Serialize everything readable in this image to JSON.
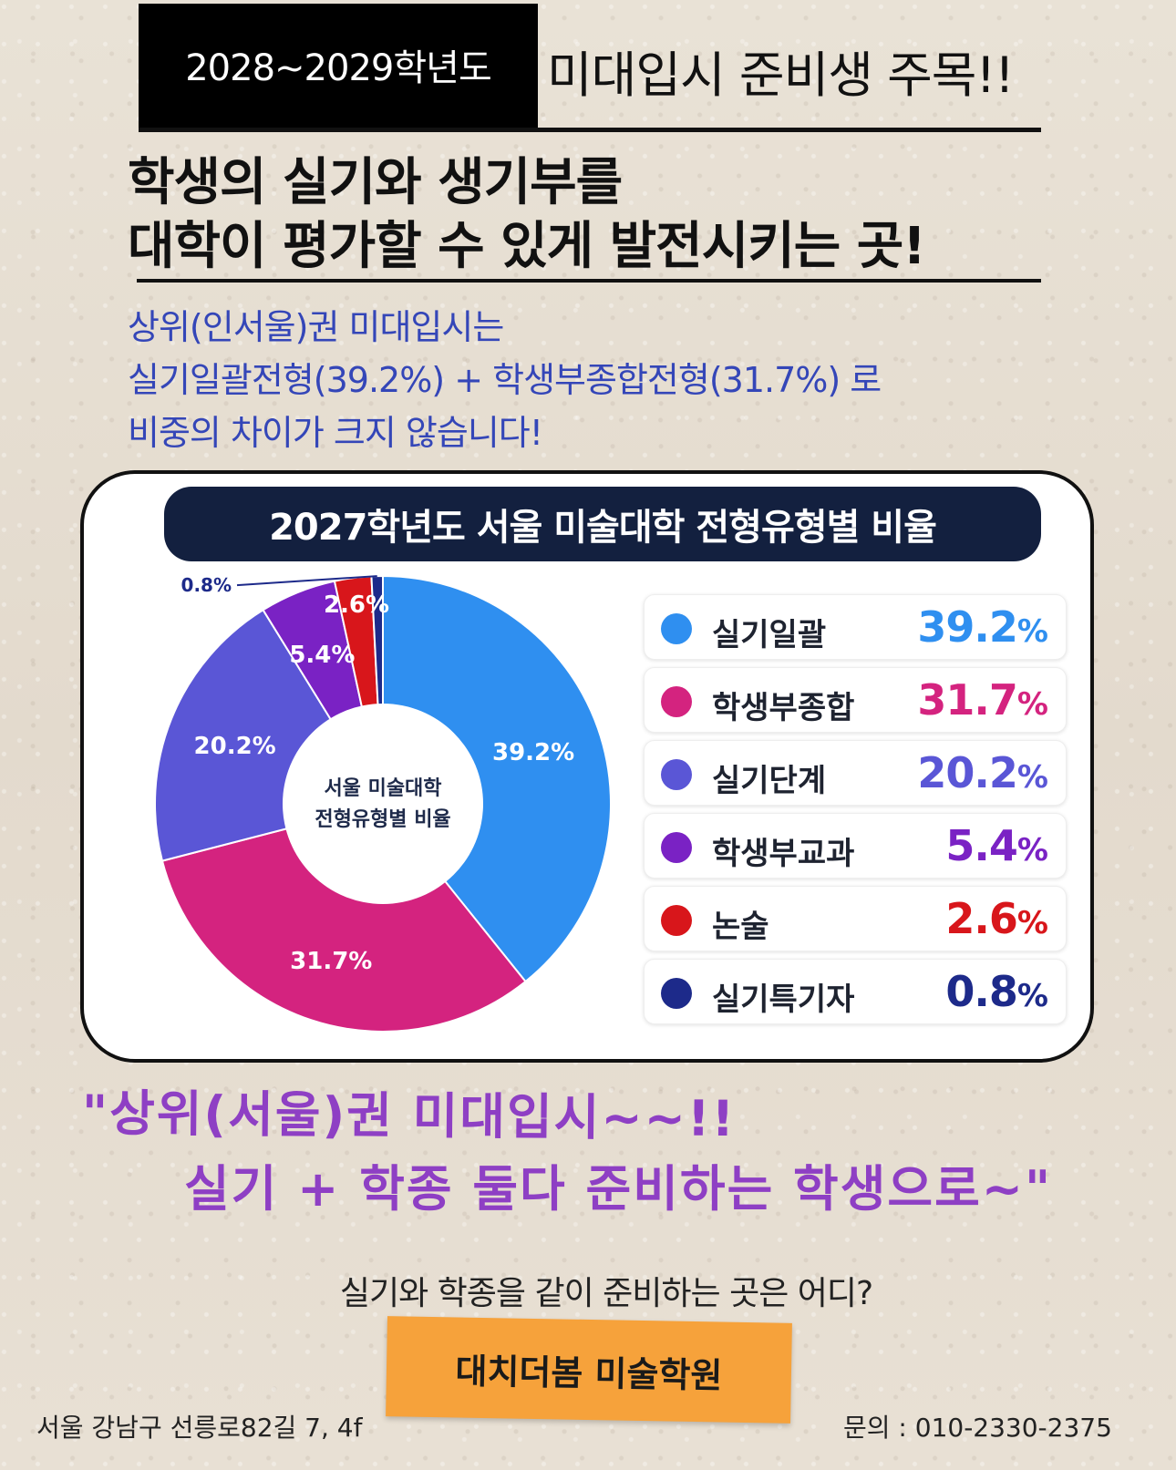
{
  "header": {
    "year_badge": "2028~2029학년도",
    "title": "미대입시 준비생 주목!!"
  },
  "headline": {
    "line1": "학생의 실기와 생기부를",
    "line2": "대학이 평가할 수  있게 발전시키는 곳!"
  },
  "subtext": {
    "line1": "상위(인서울)권  미대입시는",
    "line2": "실기일괄전형(39.2%) + 학생부종합전형(31.7%) 로",
    "line3": "비중의  차이가 크지  않습니다!"
  },
  "chart_data": {
    "type": "pie",
    "title": "2027학년도 서울 미술대학 전형유형별 비율",
    "center_label_line1": "서울 미술대학",
    "center_label_line2": "전형유형별 비율",
    "categories": [
      "실기일괄",
      "학생부종합",
      "실기단계",
      "학생부교과",
      "논술",
      "실기특기자"
    ],
    "values": [
      39.2,
      31.7,
      20.2,
      5.4,
      2.6,
      0.8
    ],
    "labels": [
      "39.2%",
      "31.7%",
      "20.2%",
      "5.4%",
      "2.6%",
      "0.8%"
    ],
    "colors": [
      "#2f8ff0",
      "#d4237f",
      "#5a56d6",
      "#7a22c4",
      "#d8161b",
      "#1d2a8a"
    ],
    "legend_values": [
      "39.2",
      "31.7",
      "20.2",
      "5.4",
      "2.6",
      "0.8"
    ],
    "percent_sign": "%",
    "legend_placement": "right"
  },
  "slogan": {
    "line1": "\"상위(서울)권 미대입시~~!!",
    "line2": "실기 + 학종  둘다 준비하는  학생으로~\""
  },
  "question": "실기와  학종을  같이  준비하는  곳은  어디?",
  "cta": "대치더봄 미술학원",
  "footer": {
    "address": "서울 강남구 선릉로82길  7,  4f",
    "contact": "문의 : 010-2330-2375"
  }
}
